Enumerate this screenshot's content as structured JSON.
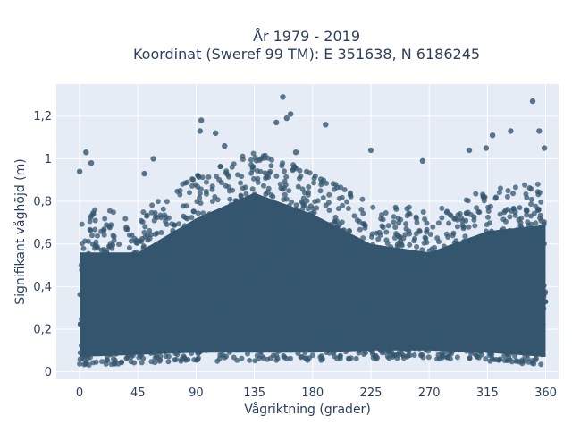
{
  "chart_data": {
    "type": "scatter",
    "title_line1": "År 1979 - 2019",
    "title_line2": "Koordinat (Sweref 99 TM): E 351638, N 6186245",
    "xlabel": "Vågriktning (grader)",
    "ylabel": "Signifikant våghöjd (m)",
    "xlim": [
      -18,
      370
    ],
    "ylim": [
      -0.035,
      1.35
    ],
    "xticks": [
      0,
      45,
      90,
      135,
      180,
      225,
      270,
      315,
      360
    ],
    "xtick_labels": [
      "0",
      "45",
      "90",
      "135",
      "180",
      "225",
      "270",
      "315",
      "360"
    ],
    "yticks": [
      0,
      0.2,
      0.4,
      0.6,
      0.8,
      1.0,
      1.2
    ],
    "ytick_labels": [
      "0",
      "0,2",
      "0,4",
      "0,6",
      "0,8",
      "1",
      "1,2"
    ],
    "grid": true,
    "marker_color": "#34556e",
    "envelope": {
      "x": [
        0,
        45,
        90,
        135,
        180,
        225,
        270,
        315,
        360
      ],
      "y_low": [
        0.03,
        0.04,
        0.05,
        0.05,
        0.05,
        0.06,
        0.06,
        0.05,
        0.03
      ],
      "y_dense_high": [
        0.62,
        0.62,
        0.78,
        0.9,
        0.8,
        0.66,
        0.62,
        0.72,
        0.75
      ]
    },
    "outliers": [
      {
        "x": 0,
        "y": 0.94
      },
      {
        "x": 5,
        "y": 1.03
      },
      {
        "x": 9,
        "y": 0.98
      },
      {
        "x": 50,
        "y": 0.93
      },
      {
        "x": 57,
        "y": 1.0
      },
      {
        "x": 93,
        "y": 1.13
      },
      {
        "x": 94,
        "y": 1.18
      },
      {
        "x": 105,
        "y": 1.12
      },
      {
        "x": 112,
        "y": 1.06
      },
      {
        "x": 152,
        "y": 1.17
      },
      {
        "x": 157,
        "y": 1.29
      },
      {
        "x": 160,
        "y": 1.19
      },
      {
        "x": 163,
        "y": 1.21
      },
      {
        "x": 167,
        "y": 1.03
      },
      {
        "x": 190,
        "y": 1.16
      },
      {
        "x": 225,
        "y": 1.04
      },
      {
        "x": 265,
        "y": 0.99
      },
      {
        "x": 301,
        "y": 1.04
      },
      {
        "x": 314,
        "y": 1.05
      },
      {
        "x": 319,
        "y": 1.11
      },
      {
        "x": 333,
        "y": 1.13
      },
      {
        "x": 350,
        "y": 1.27
      },
      {
        "x": 355,
        "y": 1.13
      },
      {
        "x": 359,
        "y": 1.05
      }
    ]
  }
}
